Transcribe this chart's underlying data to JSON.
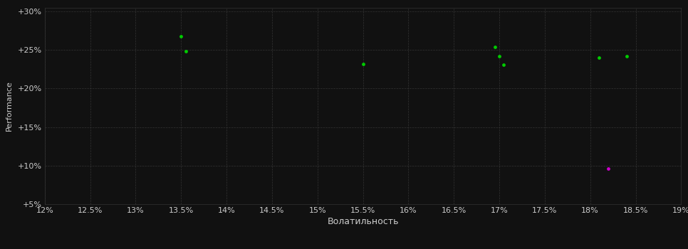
{
  "background_color": "#111111",
  "grid_color": "#333333",
  "text_color": "#cccccc",
  "xlabel": "Волатильность",
  "ylabel": "Performance",
  "xlim": [
    0.12,
    0.19
  ],
  "ylim": [
    0.05,
    0.305
  ],
  "xtick_values": [
    0.12,
    0.125,
    0.13,
    0.135,
    0.14,
    0.145,
    0.15,
    0.155,
    0.16,
    0.165,
    0.17,
    0.175,
    0.18,
    0.185,
    0.19
  ],
  "xtick_labels": [
    "12%",
    "12.5%",
    "13%",
    "13.5%",
    "14%",
    "14.5%",
    "15%",
    "15.5%",
    "16%",
    "16.5%",
    "17%",
    "17.5%",
    "18%",
    "18.5%",
    "19%"
  ],
  "ytick_values": [
    0.05,
    0.1,
    0.15,
    0.2,
    0.25,
    0.3
  ],
  "ytick_labels": [
    "+5%",
    "+10%",
    "+15%",
    "+20%",
    "+25%",
    "+30%"
  ],
  "green_points": [
    [
      0.135,
      0.268
    ],
    [
      0.1355,
      0.248
    ],
    [
      0.155,
      0.232
    ],
    [
      0.1695,
      0.254
    ],
    [
      0.17,
      0.242
    ],
    [
      0.1705,
      0.231
    ],
    [
      0.181,
      0.24
    ],
    [
      0.184,
      0.242
    ]
  ],
  "magenta_points": [
    [
      0.182,
      0.096
    ]
  ],
  "green_color": "#00cc00",
  "magenta_color": "#cc00cc",
  "dot_size": 12,
  "ylabel_fontsize": 8,
  "xlabel_fontsize": 9,
  "tick_fontsize": 8
}
